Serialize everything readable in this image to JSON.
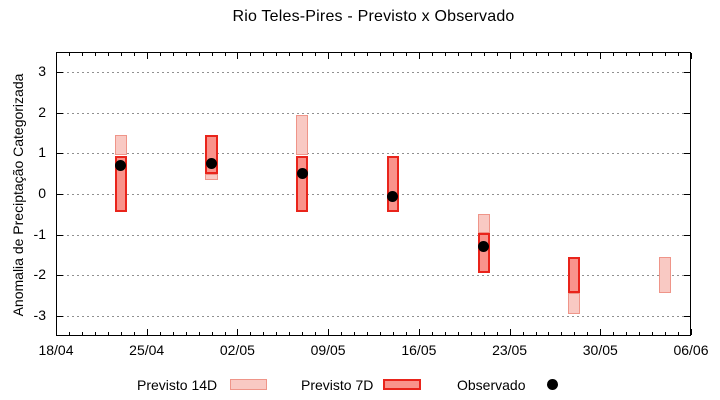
{
  "chart_data": {
    "type": "bar",
    "subtype": "range-bars-with-scatter-overlay",
    "title": "Rio Teles-Pires - Previsto x Observado",
    "ylabel": "Anomalia de Preciptação Categorizada",
    "xlabel": "",
    "grid": "dotted-horizontal",
    "legend_position": "bottom",
    "x_axis": {
      "tick_labels": [
        "18/04",
        "25/04",
        "02/05",
        "09/05",
        "16/05",
        "23/05",
        "30/05",
        "06/06"
      ],
      "tick_days": [
        0,
        7,
        14,
        21,
        28,
        35,
        42,
        49
      ],
      "total_days": 49,
      "minor_tick_every_days": 1
    },
    "y_axis": {
      "tick_labels": [
        "3",
        "2",
        "1",
        "0",
        "-1",
        "-2",
        "-3"
      ],
      "tick_values": [
        3,
        2,
        1,
        0,
        -1,
        -2,
        -3
      ],
      "range": [
        -3.5,
        3.5
      ]
    },
    "legend": [
      {
        "label": "Previsto 14D",
        "swatch": "light-pink-box"
      },
      {
        "label": "Previsto 7D",
        "swatch": "salmon-red-box"
      },
      {
        "label": "Observado",
        "swatch": "black-dot"
      }
    ],
    "bar_width_days": 0.95,
    "series": [
      {
        "name": "Previsto 14D",
        "type": "range-bar",
        "fill": "#f9c9c3",
        "border": "#ef9589",
        "points": [
          {
            "date": "23/04",
            "day": 5,
            "low": 0.95,
            "high": 1.45
          },
          {
            "date": "30/04",
            "day": 12,
            "low": 0.35,
            "high": 0.5
          },
          {
            "date": "07/05",
            "day": 19,
            "low": 0.95,
            "high": 1.95
          },
          {
            "date": "21/05",
            "day": 33,
            "low": -0.95,
            "high": -0.5
          },
          {
            "date": "28/05",
            "day": 40,
            "low": -2.95,
            "high": -2.45
          },
          {
            "date": "04/06",
            "day": 47,
            "low": -2.45,
            "high": -1.55
          }
        ]
      },
      {
        "name": "Previsto 7D",
        "type": "range-bar",
        "fill": "#f9938b",
        "border": "#e9241b",
        "points": [
          {
            "date": "23/04",
            "day": 5,
            "low": -0.45,
            "high": 0.95
          },
          {
            "date": "30/04",
            "day": 12,
            "low": 0.5,
            "high": 1.45
          },
          {
            "date": "07/05",
            "day": 19,
            "low": -0.45,
            "high": 0.95
          },
          {
            "date": "14/05",
            "day": 26,
            "low": -0.45,
            "high": 0.95
          },
          {
            "date": "21/05",
            "day": 33,
            "low": -1.95,
            "high": -0.95
          },
          {
            "date": "28/05",
            "day": 40,
            "low": -2.45,
            "high": -1.55
          }
        ]
      },
      {
        "name": "Observado",
        "type": "scatter",
        "color": "#000000",
        "points": [
          {
            "date": "23/04",
            "day": 5,
            "value": 0.7
          },
          {
            "date": "30/04",
            "day": 12,
            "value": 0.75
          },
          {
            "date": "07/05",
            "day": 19,
            "value": 0.5
          },
          {
            "date": "14/05",
            "day": 26,
            "value": -0.05
          },
          {
            "date": "21/05",
            "day": 33,
            "value": -1.3
          }
        ]
      }
    ],
    "colors": {
      "background": "#ffffff",
      "axis": "#000000",
      "grid": "#909090",
      "text": "#000000"
    }
  }
}
